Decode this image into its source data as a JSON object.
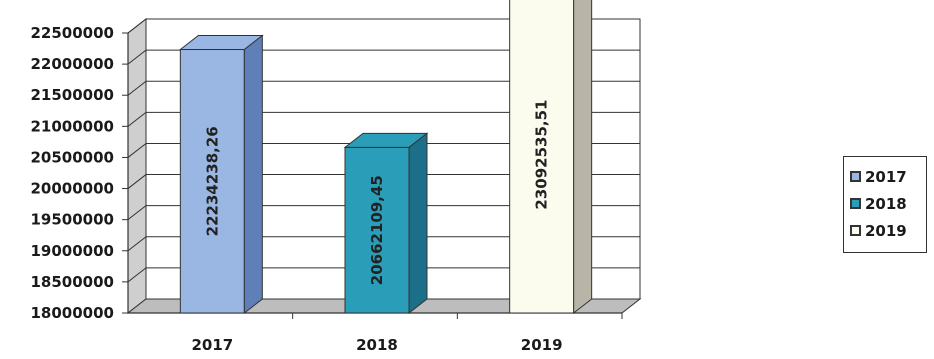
{
  "chart_data": {
    "type": "bar",
    "categories": [
      "2017",
      "2018",
      "2019"
    ],
    "values": [
      22234238.26,
      20662109.45,
      23092535.51
    ],
    "data_labels": [
      "22234238,26",
      "20662109,45",
      "23092535,51"
    ],
    "ylim": [
      18000000,
      22500000
    ],
    "yticks": [
      "18000000",
      "18500000",
      "19000000",
      "19500000",
      "20000000",
      "20500000",
      "21000000",
      "21500000",
      "22000000",
      "22500000"
    ],
    "colors": [
      "#9ab6e2",
      "#2a9db8",
      "#fbfbee"
    ],
    "side_colors": [
      "#5f7fb8",
      "#1b6f88",
      "#b8b5a8"
    ],
    "grid": true,
    "legend_position": "right",
    "legend": [
      "2017",
      "2018",
      "2019"
    ]
  }
}
